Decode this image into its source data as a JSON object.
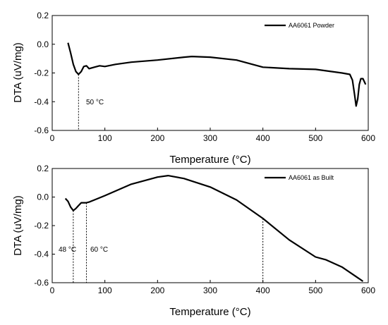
{
  "chart_data": [
    {
      "type": "line",
      "xlabel": "Temperature (°C)",
      "ylabel": "DTA (uV/mg)",
      "xlim": [
        0,
        600
      ],
      "ylim": [
        -0.6,
        0.2
      ],
      "xticks": [
        "0",
        "100",
        "200",
        "300",
        "400",
        "500",
        "600"
      ],
      "yticks": [
        "0.2",
        "0.0",
        "-0.2",
        "-0.4",
        "-0.6"
      ],
      "grid": false,
      "legend": "top-right",
      "series": [
        {
          "name": "AA6061 Powder",
          "color": "#000000",
          "x": [
            30,
            35,
            40,
            45,
            50,
            55,
            60,
            65,
            70,
            80,
            90,
            100,
            120,
            150,
            200,
            250,
            265,
            300,
            350,
            400,
            450,
            500,
            550,
            565,
            570,
            574,
            577,
            580,
            583,
            586,
            590,
            595
          ],
          "y": [
            0.01,
            -0.06,
            -0.14,
            -0.19,
            -0.21,
            -0.19,
            -0.155,
            -0.15,
            -0.17,
            -0.16,
            -0.15,
            -0.155,
            -0.14,
            -0.125,
            -0.11,
            -0.09,
            -0.085,
            -0.09,
            -0.11,
            -0.16,
            -0.17,
            -0.175,
            -0.2,
            -0.21,
            -0.25,
            -0.35,
            -0.43,
            -0.38,
            -0.28,
            -0.24,
            -0.24,
            -0.28
          ]
        }
      ],
      "annotations": [
        {
          "x": 50,
          "label": "50 °C"
        }
      ]
    },
    {
      "type": "line",
      "xlabel": "Temperature (°C)",
      "ylabel": "DTA (uV/mg)",
      "xlim": [
        0,
        600
      ],
      "ylim": [
        -0.6,
        0.2
      ],
      "xticks": [
        "0",
        "100",
        "200",
        "300",
        "400",
        "500",
        "600"
      ],
      "yticks": [
        "0.2",
        "0.0",
        "-0.2",
        "-0.4",
        "-0.6"
      ],
      "grid": false,
      "legend": "top-right",
      "series": [
        {
          "name": "AA6061 as Built",
          "color": "#000000",
          "x": [
            25,
            30,
            35,
            40,
            45,
            50,
            55,
            60,
            65,
            70,
            80,
            100,
            150,
            200,
            220,
            250,
            300,
            350,
            400,
            450,
            500,
            520,
            550,
            590
          ],
          "y": [
            -0.01,
            -0.03,
            -0.07,
            -0.095,
            -0.08,
            -0.06,
            -0.04,
            -0.04,
            -0.04,
            -0.035,
            -0.02,
            0.01,
            0.09,
            0.14,
            0.15,
            0.13,
            0.07,
            -0.02,
            -0.15,
            -0.3,
            -0.42,
            -0.44,
            -0.49,
            -0.59
          ]
        }
      ],
      "annotations": [
        {
          "x": 40,
          "label": "48 °C"
        },
        {
          "x": 65,
          "label": "60 °C"
        },
        {
          "x": 400,
          "label": ""
        }
      ]
    }
  ]
}
